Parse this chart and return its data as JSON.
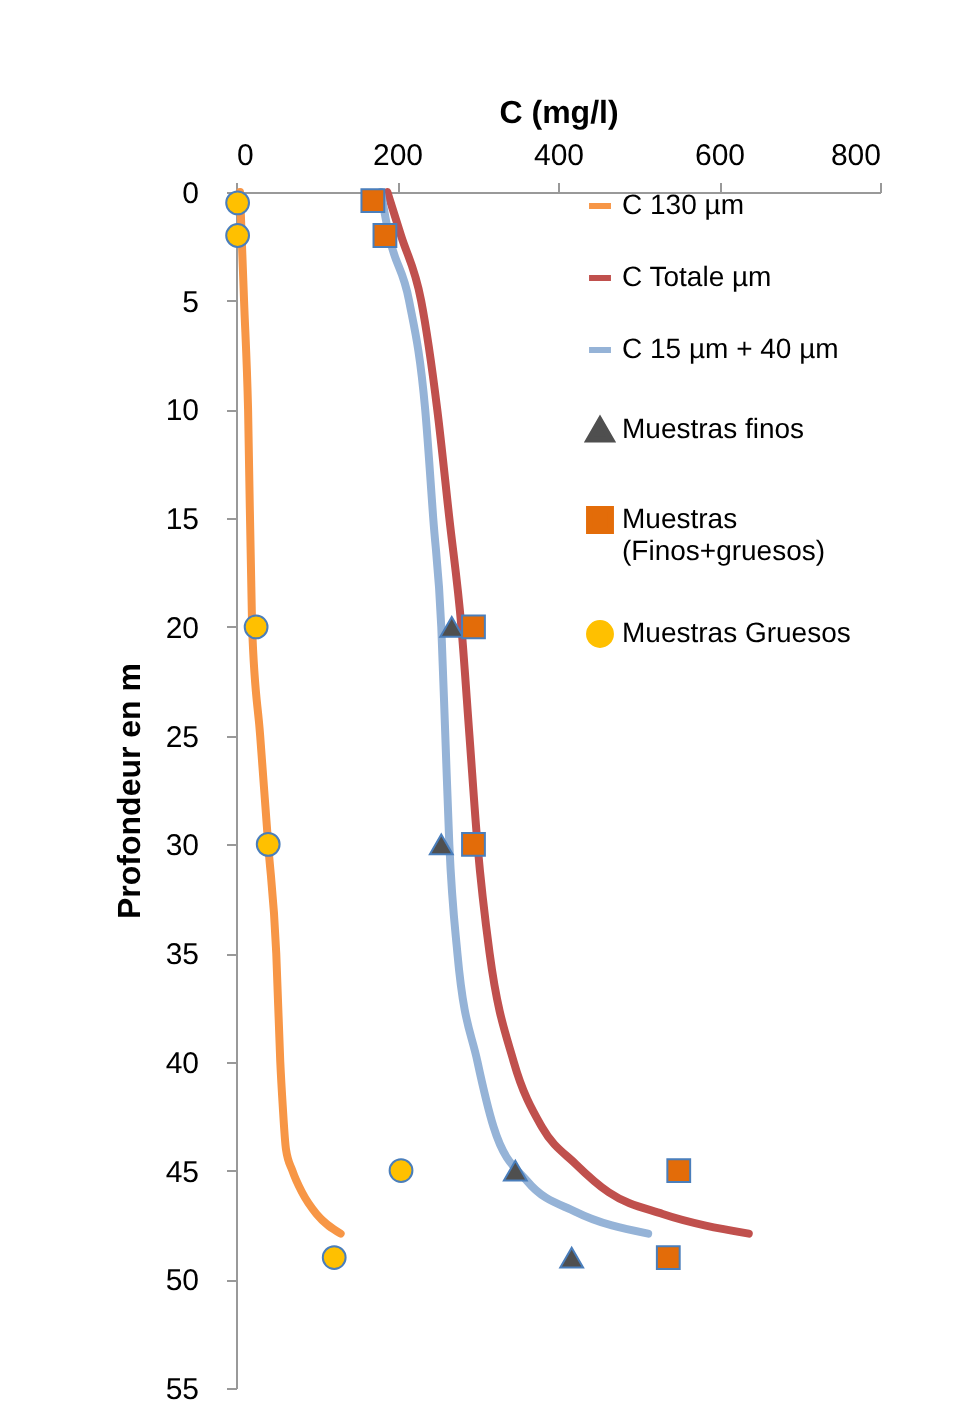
{
  "chart_data": {
    "type": "line",
    "xlabel": "C (mg/l)",
    "ylabel": "Profondeur en m",
    "xlim": [
      0,
      800
    ],
    "xticks": [
      0,
      200,
      400,
      600,
      800
    ],
    "ylim": [
      55,
      0
    ],
    "yticks": [
      0,
      5,
      10,
      15,
      20,
      25,
      30,
      35,
      40,
      45,
      50,
      55
    ],
    "grid": false,
    "legend": "right",
    "series": [
      {
        "name": "C 130 µm",
        "type": "line",
        "color": "#f79646",
        "x": [
          5,
          7,
          10,
          15,
          20,
          30,
          40,
          50,
          55,
          58,
          62,
          70,
          82,
          100,
          130
        ],
        "values": [
          0,
          2,
          5,
          10,
          20,
          25,
          30,
          35,
          40,
          42,
          44,
          45,
          46,
          47,
          47.9
        ]
      },
      {
        "name": "C Totale µm",
        "type": "line",
        "color": "#c0504d",
        "x": [
          188,
          205,
          230,
          250,
          265,
          280,
          290,
          300,
          315,
          345,
          380,
          422,
          463,
          530,
          637
        ],
        "values": [
          0,
          2,
          5,
          10,
          15,
          20,
          25,
          30,
          35,
          40,
          43,
          44.7,
          46,
          47,
          47.9
        ]
      },
      {
        "name": "C 15 µm + 40 µm",
        "type": "line",
        "color": "#95b3d7",
        "x": [
          180,
          190,
          215,
          235,
          245,
          255,
          260,
          265,
          275,
          300,
          320,
          362,
          422,
          512
        ],
        "values": [
          0,
          2,
          5,
          10,
          15,
          20,
          25,
          30,
          35,
          40,
          43,
          45.5,
          46.9,
          47.9
        ]
      },
      {
        "name": "Muestras finos",
        "type": "scatter",
        "marker": "triangle",
        "color": "#4f4f4f",
        "x": [
          268,
          255,
          347,
          417
        ],
        "values": [
          20,
          30,
          45,
          49
        ]
      },
      {
        "name": "Muestras (Finos+gruesos)",
        "type": "scatter",
        "marker": "square",
        "color": "#e36c09",
        "x": [
          170,
          185,
          295,
          295,
          550,
          537
        ],
        "values": [
          0.4,
          2,
          20,
          30,
          45,
          49
        ]
      },
      {
        "name": "Muestras Gruesos",
        "type": "scatter",
        "marker": "circle",
        "color": "#ffc000",
        "x": [
          2,
          2,
          25,
          40,
          205,
          122
        ],
        "values": [
          0.5,
          2,
          20,
          30,
          45,
          49
        ]
      }
    ]
  }
}
